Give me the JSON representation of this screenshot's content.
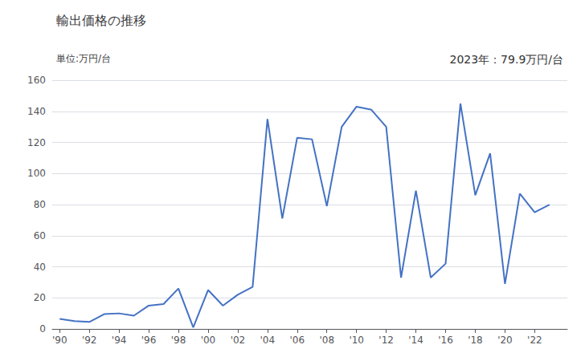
{
  "chart_data": {
    "type": "line",
    "title": "輸出価格の推移",
    "ylabel": "単位:万円/台",
    "annotation": "2023年：79.9万円/台",
    "x": [
      1990,
      1991,
      1992,
      1993,
      1994,
      1995,
      1996,
      1997,
      1998,
      1999,
      2000,
      2001,
      2002,
      2003,
      2004,
      2005,
      2006,
      2007,
      2008,
      2009,
      2010,
      2011,
      2012,
      2013,
      2014,
      2015,
      2016,
      2017,
      2018,
      2019,
      2020,
      2021,
      2022,
      2023
    ],
    "values": [
      6.5,
      5.0,
      4.5,
      9.5,
      10.0,
      8.5,
      15.0,
      16.0,
      26.0,
      1.0,
      25.0,
      15.0,
      22.0,
      27.0,
      135.0,
      71.0,
      123.0,
      122.0,
      79.0,
      130.0,
      143.0,
      141.0,
      130.0,
      33.0,
      89.0,
      33.0,
      42.0,
      145.0,
      86.0,
      113.0,
      29.0,
      87.0,
      75.0,
      79.9
    ],
    "color": "#4472C4",
    "xlim": [
      1989.5,
      2024.2
    ],
    "xticks": [
      {
        "value": 1990,
        "label": "'90"
      },
      {
        "value": 1992,
        "label": "'92"
      },
      {
        "value": 1994,
        "label": "'94"
      },
      {
        "value": 1996,
        "label": "'96"
      },
      {
        "value": 1998,
        "label": "'98"
      },
      {
        "value": 2000,
        "label": "'00"
      },
      {
        "value": 2002,
        "label": "'02"
      },
      {
        "value": 2004,
        "label": "'04"
      },
      {
        "value": 2006,
        "label": "'06"
      },
      {
        "value": 2008,
        "label": "'08"
      },
      {
        "value": 2010,
        "label": "'10"
      },
      {
        "value": 2012,
        "label": "'12"
      },
      {
        "value": 2014,
        "label": "'14"
      },
      {
        "value": 2016,
        "label": "'16"
      },
      {
        "value": 2018,
        "label": "'18"
      },
      {
        "value": 2020,
        "label": "'20"
      },
      {
        "value": 2022,
        "label": "'22"
      }
    ],
    "ylim": [
      0,
      160
    ],
    "yticks": [
      0,
      20,
      40,
      60,
      80,
      100,
      120,
      140,
      160
    ],
    "grid": "y"
  }
}
